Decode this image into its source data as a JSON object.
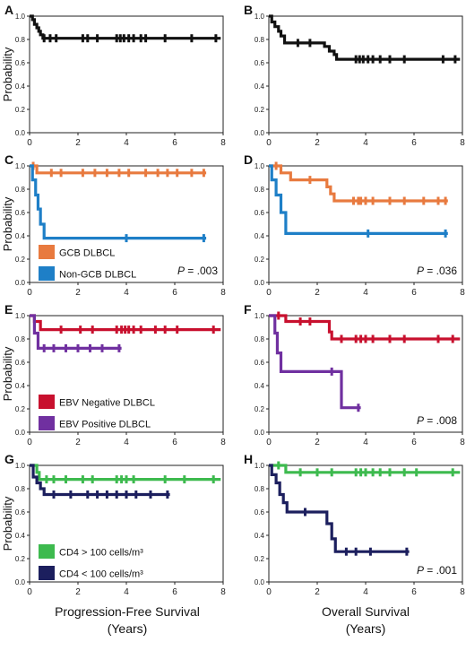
{
  "figure": {
    "ylabel": "Probability",
    "bottom_labels": {
      "left": [
        "Progression-Free Survival",
        "(Years)"
      ],
      "right": [
        "Overall Survival",
        "(Years)"
      ]
    }
  },
  "chart_data": [
    {
      "type": "line",
      "panel": "A",
      "xlim": [
        0,
        8
      ],
      "ylim": [
        0,
        1.0
      ],
      "xticks": [
        "0",
        "2",
        "4",
        "6",
        "8"
      ],
      "yticks": [
        "0.0",
        "0.2",
        "0.4",
        "0.6",
        "0.8",
        "1.0"
      ],
      "legend": [],
      "pvalue": "",
      "series": [
        {
          "color": "#111111",
          "steps": [
            [
              0,
              1.0
            ],
            [
              0.12,
              0.97
            ],
            [
              0.2,
              0.93
            ],
            [
              0.3,
              0.9
            ],
            [
              0.38,
              0.87
            ],
            [
              0.45,
              0.84
            ],
            [
              0.55,
              0.81
            ],
            [
              7.9,
              0.81
            ]
          ],
          "censors": [
            0.6,
            0.85,
            1.1,
            2.2,
            2.4,
            2.8,
            3.6,
            3.75,
            3.9,
            4.1,
            4.3,
            4.6,
            4.8,
            5.6,
            6.7,
            7.7
          ]
        }
      ]
    },
    {
      "type": "line",
      "panel": "B",
      "xlim": [
        0,
        8
      ],
      "ylim": [
        0,
        1.0
      ],
      "xticks": [
        "0",
        "2",
        "4",
        "6",
        "8"
      ],
      "yticks": [
        "0.0",
        "0.2",
        "0.4",
        "0.6",
        "0.8",
        "1.0"
      ],
      "legend": [],
      "pvalue": "",
      "series": [
        {
          "color": "#111111",
          "steps": [
            [
              0,
              1.0
            ],
            [
              0.12,
              0.95
            ],
            [
              0.25,
              0.91
            ],
            [
              0.4,
              0.87
            ],
            [
              0.5,
              0.83
            ],
            [
              0.65,
              0.77
            ],
            [
              1.8,
              0.77
            ],
            [
              2.3,
              0.74
            ],
            [
              2.5,
              0.7
            ],
            [
              2.7,
              0.67
            ],
            [
              2.8,
              0.63
            ],
            [
              7.9,
              0.63
            ]
          ],
          "censors": [
            1.2,
            1.7,
            3.6,
            3.75,
            3.9,
            4.1,
            4.3,
            4.6,
            5.0,
            5.6,
            7.2,
            7.7
          ]
        }
      ]
    },
    {
      "type": "line",
      "panel": "C",
      "xlim": [
        0,
        8
      ],
      "ylim": [
        0,
        1.0
      ],
      "xticks": [
        "0",
        "2",
        "4",
        "6",
        "8"
      ],
      "yticks": [
        "0.0",
        "0.2",
        "0.4",
        "0.6",
        "0.8",
        "1.0"
      ],
      "legend": [
        {
          "label": "GCB DLBCL",
          "color": "#e87a3f"
        },
        {
          "label": "Non-GCB DLBCL",
          "color": "#1e7fc7"
        }
      ],
      "pvalue": "P = .003",
      "series": [
        {
          "color": "#e87a3f",
          "steps": [
            [
              0,
              1.0
            ],
            [
              0.3,
              0.94
            ],
            [
              7.3,
              0.94
            ]
          ],
          "censors": [
            0.15,
            0.9,
            1.3,
            2.2,
            2.7,
            3.2,
            3.7,
            4.1,
            4.8,
            5.3,
            5.7,
            6.1,
            6.7,
            7.2
          ]
        },
        {
          "color": "#1e7fc7",
          "steps": [
            [
              0,
              1.0
            ],
            [
              0.12,
              0.88
            ],
            [
              0.25,
              0.75
            ],
            [
              0.35,
              0.63
            ],
            [
              0.45,
              0.5
            ],
            [
              0.6,
              0.38
            ],
            [
              7.3,
              0.38
            ]
          ],
          "censors": [
            4.0,
            7.2
          ]
        }
      ]
    },
    {
      "type": "line",
      "panel": "D",
      "xlim": [
        0,
        8
      ],
      "ylim": [
        0,
        1.0
      ],
      "xticks": [
        "0",
        "2",
        "4",
        "6",
        "8"
      ],
      "yticks": [
        "0.0",
        "0.2",
        "0.4",
        "0.6",
        "0.8",
        "1.0"
      ],
      "legend": [],
      "pvalue": "P = .036",
      "series": [
        {
          "color": "#e87a3f",
          "steps": [
            [
              0,
              1.0
            ],
            [
              0.5,
              0.94
            ],
            [
              0.9,
              0.88
            ],
            [
              2.4,
              0.82
            ],
            [
              2.55,
              0.76
            ],
            [
              2.7,
              0.7
            ],
            [
              7.4,
              0.7
            ]
          ],
          "censors": [
            0.3,
            1.7,
            3.5,
            3.7,
            3.8,
            4.0,
            4.3,
            5.0,
            5.6,
            6.4,
            7.0,
            7.3
          ]
        },
        {
          "color": "#1e7fc7",
          "steps": [
            [
              0,
              1.0
            ],
            [
              0.12,
              0.88
            ],
            [
              0.3,
              0.75
            ],
            [
              0.5,
              0.6
            ],
            [
              0.7,
              0.42
            ],
            [
              7.4,
              0.42
            ]
          ],
          "censors": [
            4.1,
            7.3
          ]
        }
      ]
    },
    {
      "type": "line",
      "panel": "E",
      "xlim": [
        0,
        8
      ],
      "ylim": [
        0,
        1.0
      ],
      "xticks": [
        "0",
        "2",
        "4",
        "6",
        "8"
      ],
      "yticks": [
        "0.0",
        "0.2",
        "0.4",
        "0.6",
        "0.8",
        "1.0"
      ],
      "legend": [
        {
          "label": "EBV Negative DLBCL",
          "color": "#c8102e"
        },
        {
          "label": "EBV Positive DLBCL",
          "color": "#7030a0"
        }
      ],
      "pvalue": "",
      "series": [
        {
          "color": "#c8102e",
          "steps": [
            [
              0,
              1.0
            ],
            [
              0.2,
              0.95
            ],
            [
              0.45,
              0.88
            ],
            [
              7.9,
              0.88
            ]
          ],
          "censors": [
            1.3,
            2.1,
            2.6,
            3.6,
            3.8,
            3.95,
            4.1,
            4.3,
            4.6,
            5.2,
            5.6,
            6.1,
            7.6
          ]
        },
        {
          "color": "#7030a0",
          "steps": [
            [
              0,
              1.0
            ],
            [
              0.2,
              0.85
            ],
            [
              0.35,
              0.72
            ],
            [
              3.8,
              0.72
            ]
          ],
          "censors": [
            0.6,
            1.0,
            1.5,
            2.0,
            2.5,
            3.0,
            3.7
          ]
        }
      ]
    },
    {
      "type": "line",
      "panel": "F",
      "xlim": [
        0,
        8
      ],
      "ylim": [
        0,
        1.0
      ],
      "xticks": [
        "0",
        "2",
        "4",
        "6",
        "8"
      ],
      "yticks": [
        "0.0",
        "0.2",
        "0.4",
        "0.6",
        "0.8",
        "1.0"
      ],
      "legend": [],
      "pvalue": "P = .008",
      "series": [
        {
          "color": "#c8102e",
          "steps": [
            [
              0,
              1.0
            ],
            [
              0.7,
              0.95
            ],
            [
              2.5,
              0.86
            ],
            [
              2.6,
              0.8
            ],
            [
              7.9,
              0.8
            ]
          ],
          "censors": [
            0.4,
            1.3,
            1.7,
            3.0,
            3.6,
            3.8,
            4.0,
            4.3,
            5.0,
            5.6,
            7.0,
            7.6
          ]
        },
        {
          "color": "#7030a0",
          "steps": [
            [
              0,
              1.0
            ],
            [
              0.25,
              0.85
            ],
            [
              0.35,
              0.68
            ],
            [
              0.5,
              0.52
            ],
            [
              2.8,
              0.52
            ],
            [
              3.0,
              0.21
            ],
            [
              3.8,
              0.21
            ]
          ],
          "censors": [
            2.6,
            3.7
          ]
        }
      ]
    },
    {
      "type": "line",
      "panel": "G",
      "xlim": [
        0,
        8
      ],
      "ylim": [
        0,
        1.0
      ],
      "xticks": [
        "0",
        "2",
        "4",
        "6",
        "8"
      ],
      "yticks": [
        "0.0",
        "0.2",
        "0.4",
        "0.6",
        "0.8",
        "1.0"
      ],
      "legend": [
        {
          "label": "CD4 > 100 cells/m³",
          "color": "#3dba4e"
        },
        {
          "label": "CD4 < 100 cells/m³",
          "color": "#1c1f5e"
        }
      ],
      "pvalue": "",
      "series": [
        {
          "color": "#3dba4e",
          "steps": [
            [
              0,
              1.0
            ],
            [
              0.3,
              0.94
            ],
            [
              0.4,
              0.88
            ],
            [
              7.9,
              0.88
            ]
          ],
          "censors": [
            0.7,
            1.0,
            1.5,
            2.2,
            2.6,
            3.6,
            3.8,
            4.0,
            4.3,
            5.6,
            6.4,
            7.6
          ]
        },
        {
          "color": "#1c1f5e",
          "steps": [
            [
              0,
              1.0
            ],
            [
              0.15,
              0.9
            ],
            [
              0.3,
              0.85
            ],
            [
              0.45,
              0.8
            ],
            [
              0.6,
              0.75
            ],
            [
              5.8,
              0.75
            ]
          ],
          "censors": [
            1.0,
            1.7,
            2.4,
            2.8,
            3.2,
            3.6,
            4.0,
            4.4,
            5.0,
            5.7
          ]
        }
      ]
    },
    {
      "type": "line",
      "panel": "H",
      "xlim": [
        0,
        8
      ],
      "ylim": [
        0,
        1.0
      ],
      "xticks": [
        "0",
        "2",
        "4",
        "6",
        "8"
      ],
      "yticks": [
        "0.0",
        "0.2",
        "0.4",
        "0.6",
        "0.8",
        "1.0"
      ],
      "legend": [],
      "pvalue": "P = .001",
      "series": [
        {
          "color": "#3dba4e",
          "steps": [
            [
              0,
              1.0
            ],
            [
              0.7,
              0.94
            ],
            [
              7.9,
              0.94
            ]
          ],
          "censors": [
            0.4,
            1.3,
            2.0,
            2.6,
            3.6,
            3.8,
            4.0,
            4.3,
            4.6,
            5.0,
            5.6,
            6.1,
            7.6
          ]
        },
        {
          "color": "#1c1f5e",
          "steps": [
            [
              0,
              1.0
            ],
            [
              0.12,
              0.92
            ],
            [
              0.3,
              0.85
            ],
            [
              0.45,
              0.75
            ],
            [
              0.6,
              0.68
            ],
            [
              0.75,
              0.6
            ],
            [
              2.3,
              0.6
            ],
            [
              2.4,
              0.5
            ],
            [
              2.6,
              0.37
            ],
            [
              2.75,
              0.26
            ],
            [
              5.8,
              0.26
            ]
          ],
          "censors": [
            1.5,
            3.2,
            3.6,
            4.2,
            5.7
          ]
        }
      ]
    }
  ]
}
